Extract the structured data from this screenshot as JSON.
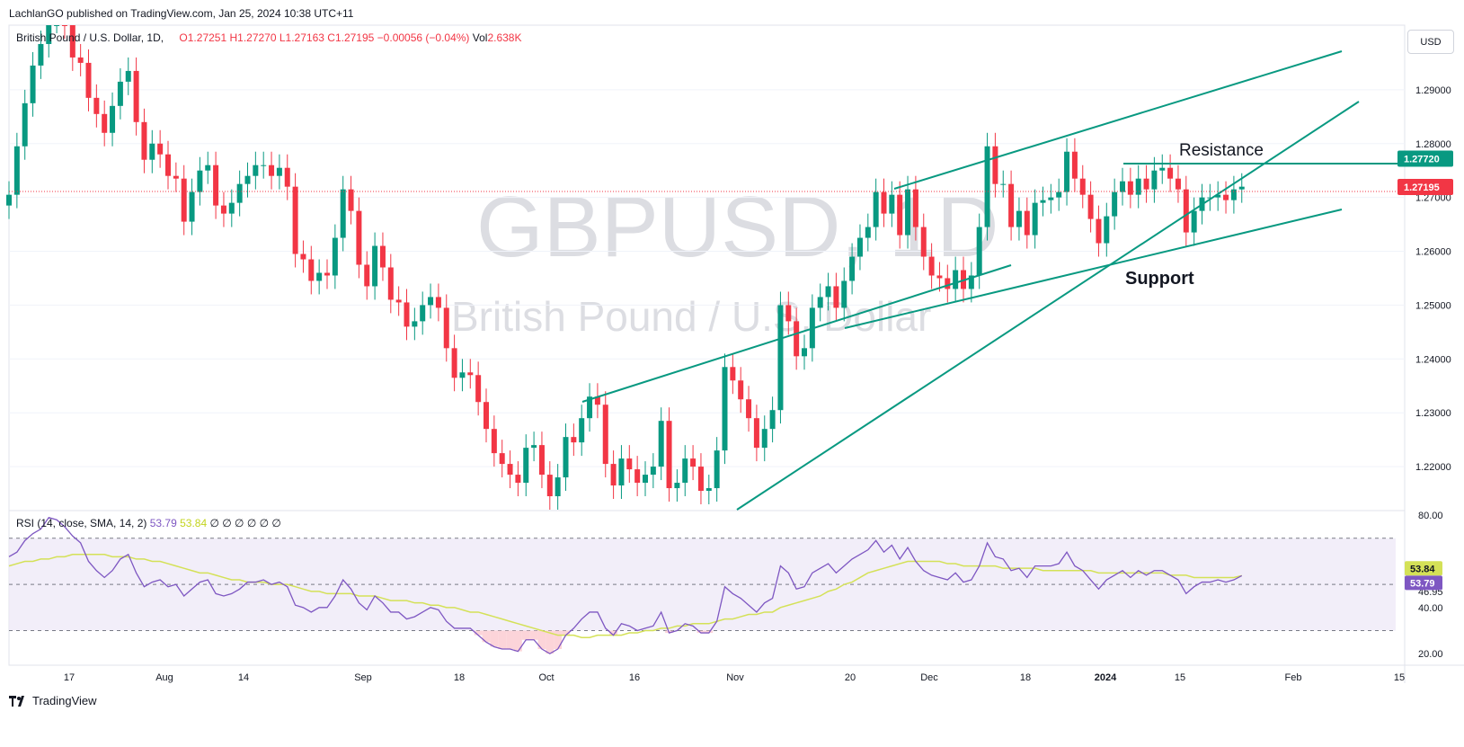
{
  "header": {
    "published_line": "LachlanGO published on TradingView.com, Jan 25, 2024 10:38 UTC+11"
  },
  "legend": {
    "symbol": "British Pound / U.S. Dollar, 1D,",
    "open": "O1.27251",
    "high": "H1.27270",
    "low": "L1.27163",
    "close": "C1.27195",
    "change": "−0.00056 (−0.04%)",
    "volume_label": "Vol",
    "volume": "2.638K"
  },
  "watermark": {
    "ticker": "GBPUSD, 1D",
    "name": "British Pound / U.S. Dollar"
  },
  "currency_button": "USD",
  "annotations": {
    "resistance": "Resistance",
    "support": "Support"
  },
  "rsi_legend": {
    "title": "RSI (14, close, SMA, 14, 2)",
    "rsi_value": "53.79",
    "sma_value": "53.84",
    "zeros": "∅ ∅ ∅ ∅ ∅ ∅"
  },
  "footer": {
    "brand": "TradingView"
  },
  "colors": {
    "up": "#089981",
    "down": "#f23645",
    "trendline": "#089981",
    "rsi": "#7e57c2",
    "sma": "#d4e157",
    "band": "#ede7f6"
  },
  "chart_data": {
    "type": "candlestick",
    "price_axis": {
      "ylim": [
        1.212,
        1.302
      ],
      "ticks": [
        "1.29000",
        "1.28000",
        "1.27000",
        "1.26000",
        "1.25000",
        "1.24000",
        "1.23000",
        "1.22000"
      ]
    },
    "price_tags": [
      {
        "label": "1.27720",
        "value": 1.2772,
        "color": "#089981"
      },
      {
        "label": "1.27195",
        "value": 1.27195,
        "color": "#f23645"
      }
    ],
    "x_ticks": [
      "17",
      "Aug",
      "14",
      "Sep",
      "18",
      "Oct",
      "16",
      "Nov",
      "20",
      "Dec",
      "18",
      "2024",
      "15",
      "Feb",
      "15"
    ],
    "candles_close": [
      1.2705,
      1.2795,
      1.2875,
      1.2945,
      1.2985,
      1.303,
      1.304,
      1.302,
      1.296,
      1.295,
      1.2885,
      1.2855,
      1.282,
      1.287,
      1.2915,
      1.2935,
      1.284,
      1.277,
      1.28,
      1.278,
      1.274,
      1.2735,
      1.2655,
      1.271,
      1.275,
      1.276,
      1.2685,
      1.267,
      1.269,
      1.2725,
      1.274,
      1.276,
      1.276,
      1.274,
      1.2755,
      1.272,
      1.2595,
      1.2585,
      1.2545,
      1.256,
      1.2555,
      1.2625,
      1.2715,
      1.2675,
      1.2575,
      1.2535,
      1.261,
      1.257,
      1.251,
      1.2505,
      1.246,
      1.247,
      1.25,
      1.2515,
      1.2495,
      1.242,
      1.2365,
      1.2375,
      1.237,
      1.232,
      1.227,
      1.2225,
      1.2205,
      1.2185,
      1.217,
      1.2235,
      1.224,
      1.2185,
      1.2145,
      1.218,
      1.2255,
      1.2245,
      1.229,
      1.233,
      1.2315,
      1.2205,
      1.2165,
      1.2215,
      1.2195,
      1.217,
      1.2185,
      1.22,
      1.2285,
      1.216,
      1.217,
      1.2215,
      1.22,
      1.2155,
      1.216,
      1.223,
      1.2385,
      1.236,
      1.2325,
      1.229,
      1.2235,
      1.227,
      1.2305,
      1.25,
      1.247,
      1.2405,
      1.242,
      1.2495,
      1.2515,
      1.2535,
      1.2495,
      1.2545,
      1.259,
      1.2625,
      1.2645,
      1.271,
      1.267,
      1.2705,
      1.263,
      1.2715,
      1.2645,
      1.259,
      1.2555,
      1.255,
      1.253,
      1.2565,
      1.253,
      1.2555,
      1.2645,
      1.2795,
      1.2725,
      1.2725,
      1.2645,
      1.2675,
      1.263,
      1.269,
      1.2695,
      1.27,
      1.271,
      1.2785,
      1.2735,
      1.2705,
      1.266,
      1.2615,
      1.2665,
      1.271,
      1.273,
      1.2705,
      1.2735,
      1.2715,
      1.275,
      1.2755,
      1.2735,
      1.2715,
      1.2635,
      1.2675,
      1.27,
      1.27,
      1.2705,
      1.2695,
      1.2715,
      1.272
    ]
  },
  "rsi_chart": {
    "type": "line",
    "ylim": [
      15,
      82
    ],
    "y_ticks": [
      "80.00",
      "58.15",
      "46.95",
      "40.00",
      "20.00"
    ],
    "bands": [
      70,
      50,
      30
    ],
    "rsi_tag": {
      "label": "53.79",
      "value": 53.79
    },
    "sma_tag": {
      "label": "53.84",
      "value": 53.84
    },
    "rsi_values": [
      62,
      64,
      69,
      72,
      74,
      79,
      78,
      75,
      71,
      68,
      60,
      56,
      53,
      56,
      61,
      63,
      55,
      49,
      51,
      52,
      49,
      50,
      45,
      48,
      51,
      52,
      46,
      45,
      46,
      48,
      51,
      51,
      52,
      50,
      51,
      49,
      41,
      40,
      38,
      40,
      40,
      45,
      52,
      48,
      42,
      39,
      45,
      42,
      38,
      38,
      35,
      36,
      38,
      40,
      39,
      34,
      31,
      31,
      31,
      28,
      25,
      23,
      22,
      22,
      21,
      26,
      26,
      22,
      20,
      22,
      28,
      31,
      35,
      38,
      38,
      31,
      28,
      33,
      32,
      30,
      31,
      32,
      38,
      29,
      30,
      33,
      32,
      29,
      29,
      34,
      49,
      46,
      44,
      41,
      38,
      42,
      44,
      58,
      55,
      48,
      49,
      55,
      57,
      59,
      55,
      58,
      61,
      63,
      65,
      69,
      64,
      67,
      61,
      66,
      60,
      56,
      54,
      53,
      52,
      55,
      51,
      52,
      58,
      68,
      62,
      61,
      56,
      57,
      53,
      58,
      58,
      58,
      59,
      64,
      58,
      56,
      52,
      48,
      52,
      54,
      56,
      53,
      56,
      54,
      56,
      56,
      54,
      52,
      46,
      49,
      51,
      51,
      52,
      51,
      52,
      53.79
    ],
    "sma_values": [
      58,
      59,
      60,
      60,
      61,
      61,
      62,
      62,
      63,
      63,
      63,
      63,
      63,
      62,
      62,
      62,
      61,
      61,
      60,
      60,
      59,
      58,
      57,
      56,
      55,
      55,
      54,
      53,
      52,
      52,
      51,
      51,
      51,
      50,
      50,
      50,
      49,
      48,
      47,
      47,
      46,
      46,
      46,
      46,
      45,
      45,
      45,
      44,
      43,
      43,
      43,
      42,
      42,
      41,
      41,
      40,
      40,
      39,
      38,
      38,
      37,
      36,
      35,
      34,
      33,
      32,
      31,
      30,
      29,
      28,
      28,
      28,
      27,
      27,
      28,
      28,
      28,
      28,
      29,
      29,
      30,
      30,
      31,
      31,
      32,
      32,
      33,
      33,
      33,
      34,
      35,
      35,
      36,
      37,
      37,
      38,
      38,
      40,
      41,
      42,
      43,
      44,
      45,
      47,
      48,
      50,
      51,
      53,
      55,
      56,
      57,
      58,
      59,
      60,
      60,
      60,
      60,
      60,
      59,
      59,
      58,
      58,
      58,
      58,
      58,
      57,
      57,
      57,
      57,
      57,
      56,
      56,
      56,
      56,
      56,
      56,
      56,
      55,
      55,
      55,
      55,
      55,
      55,
      55,
      55,
      55,
      54,
      54,
      54,
      53,
      53,
      53,
      53,
      53,
      53,
      53.84
    ]
  }
}
